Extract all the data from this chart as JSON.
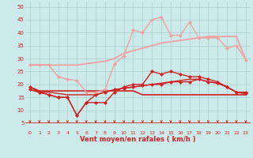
{
  "bg_color": "#cdeaea",
  "grid_color": "#aacccc",
  "x_label": "Vent moyen/en rafales ( km/h )",
  "x_ticks": [
    0,
    1,
    2,
    3,
    4,
    5,
    6,
    7,
    8,
    9,
    10,
    11,
    12,
    13,
    14,
    15,
    16,
    17,
    18,
    19,
    20,
    21,
    22,
    23
  ],
  "ylim": [
    5,
    52
  ],
  "yticks": [
    5,
    10,
    15,
    20,
    25,
    30,
    35,
    40,
    45,
    50
  ],
  "series": [
    {
      "name": "upper_band_smooth",
      "color": "#f0a0a0",
      "linewidth": 1.3,
      "marker": null,
      "zorder": 2,
      "x": [
        0,
        1,
        2,
        3,
        4,
        5,
        6,
        7,
        8,
        9,
        10,
        11,
        12,
        13,
        14,
        15,
        16,
        17,
        18,
        19,
        20,
        21,
        22,
        23
      ],
      "y": [
        27.5,
        27.5,
        27.5,
        27.5,
        27.5,
        27.5,
        28,
        28.5,
        29,
        30,
        32,
        33,
        34,
        35,
        36,
        36.5,
        37,
        37.5,
        38,
        38.5,
        38.5,
        38.5,
        38.5,
        29.5
      ]
    },
    {
      "name": "upper_band_jagged",
      "color": "#f0a0a0",
      "linewidth": 1.0,
      "marker": "D",
      "markersize": 2.0,
      "zorder": 3,
      "x": [
        0,
        1,
        2,
        3,
        4,
        5,
        6,
        7,
        8,
        9,
        10,
        11,
        12,
        13,
        14,
        15,
        16,
        17,
        18,
        19,
        20,
        21,
        22,
        23
      ],
      "y": [
        27.5,
        27.5,
        27.5,
        23,
        22,
        21.5,
        17,
        17,
        18,
        28,
        31,
        41,
        40,
        45,
        46,
        39,
        39,
        44,
        38,
        38,
        38,
        34,
        35,
        29.5
      ]
    },
    {
      "name": "lower_flat",
      "color": "#cc2222",
      "linewidth": 1.2,
      "marker": null,
      "zorder": 2,
      "x": [
        0,
        1,
        2,
        3,
        4,
        5,
        6,
        7,
        8,
        9,
        10,
        11,
        12,
        13,
        14,
        15,
        16,
        17,
        18,
        19,
        20,
        21,
        22,
        23
      ],
      "y": [
        19,
        17.5,
        17.5,
        17.5,
        17.5,
        17.5,
        17.5,
        17.5,
        17.5,
        17.5,
        17.5,
        17.5,
        16,
        16,
        16,
        16,
        16,
        16,
        16,
        16,
        16,
        16,
        16,
        16
      ]
    },
    {
      "name": "lower_jagged",
      "color": "#cc2222",
      "linewidth": 1.0,
      "marker": "D",
      "markersize": 2.0,
      "zorder": 4,
      "x": [
        0,
        1,
        2,
        3,
        4,
        5,
        6,
        7,
        8,
        9,
        10,
        11,
        12,
        13,
        14,
        15,
        16,
        17,
        18,
        19,
        20,
        21,
        22,
        23
      ],
      "y": [
        19,
        17,
        16,
        15,
        15,
        8,
        13,
        13,
        13,
        17,
        19,
        20,
        20,
        25,
        24,
        25,
        24,
        23,
        23,
        22,
        21,
        19,
        17,
        17
      ]
    },
    {
      "name": "lower_smooth2",
      "color": "#cc2222",
      "linewidth": 1.0,
      "marker": "D",
      "markersize": 2.0,
      "zorder": 3,
      "x": [
        0,
        1,
        2,
        3,
        4,
        5,
        6,
        7,
        8,
        9,
        10,
        11,
        12,
        13,
        14,
        15,
        16,
        17,
        18,
        19,
        20,
        21,
        22,
        23
      ],
      "y": [
        18,
        17,
        16,
        15,
        15,
        8,
        13,
        16,
        17,
        18,
        18.5,
        19,
        19.5,
        20,
        20,
        21,
        21,
        21,
        22,
        21,
        20.5,
        19,
        17,
        16.5
      ]
    },
    {
      "name": "lower_smooth3",
      "color": "#cc2222",
      "linewidth": 1.0,
      "marker": null,
      "zorder": 2,
      "x": [
        0,
        1,
        2,
        3,
        4,
        5,
        6,
        7,
        8,
        9,
        10,
        11,
        12,
        13,
        14,
        15,
        16,
        17,
        18,
        19,
        20,
        21,
        22,
        23
      ],
      "y": [
        18,
        17,
        17,
        16.5,
        16,
        16,
        16,
        16,
        17,
        18,
        18.5,
        19,
        19.5,
        20,
        20.5,
        21,
        21.5,
        22,
        22,
        21,
        20.5,
        19,
        17,
        16.5
      ]
    }
  ],
  "arrow_color": "#cc2222",
  "axis_line_color": "#cc2222"
}
